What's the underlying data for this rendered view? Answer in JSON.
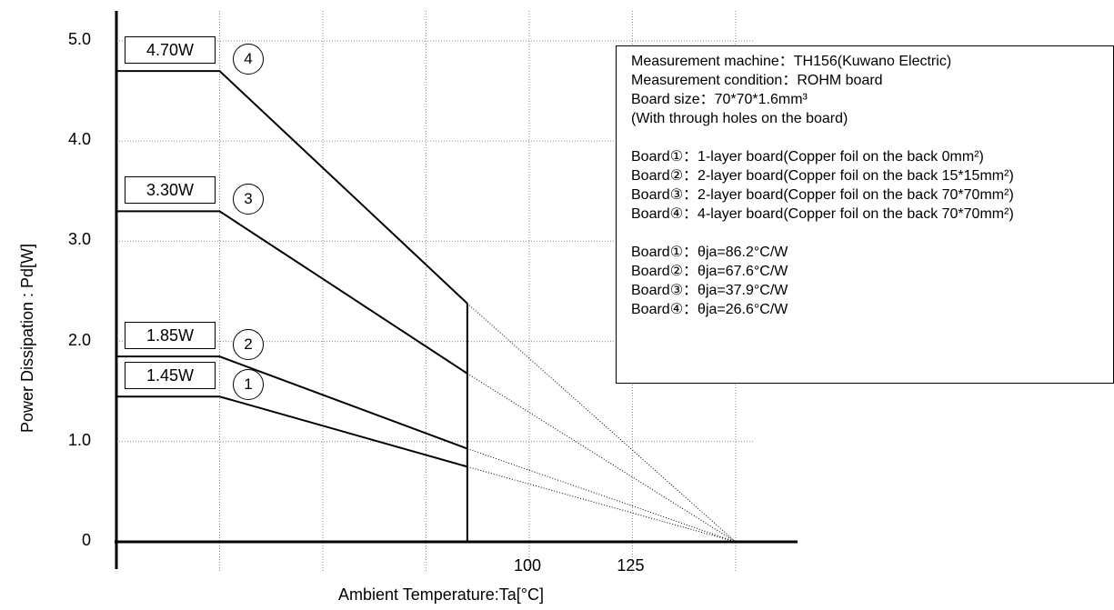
{
  "chart_data": {
    "type": "line",
    "xlabel": "Ambient Temperature:Ta[°C]",
    "ylabel": "Power Dissipation : Pd[W]",
    "y_ticks": [
      "0",
      "1.0",
      "2.0",
      "3.0",
      "4.0",
      "5.0"
    ],
    "x_ticks": [
      {
        "value": 100,
        "label": "100"
      },
      {
        "value": 125,
        "label": "125"
      }
    ],
    "xlim": [
      0,
      165
    ],
    "ylim": [
      0,
      5.3
    ],
    "grid": true,
    "cutoff_x": 85,
    "zero_x": 150,
    "series": [
      {
        "name": "1",
        "label": "1.45W",
        "points": [
          [
            0,
            1.45
          ],
          [
            25,
            1.45
          ],
          [
            85,
            0.75
          ]
        ],
        "extrapolate_to": [
          150,
          0
        ]
      },
      {
        "name": "2",
        "label": "1.85W",
        "points": [
          [
            0,
            1.85
          ],
          [
            25,
            1.85
          ],
          [
            85,
            0.93
          ]
        ],
        "extrapolate_to": [
          150,
          0
        ]
      },
      {
        "name": "3",
        "label": "3.30W",
        "points": [
          [
            0,
            3.3
          ],
          [
            25,
            3.3
          ],
          [
            85,
            1.68
          ]
        ],
        "extrapolate_to": [
          150,
          0
        ]
      },
      {
        "name": "4",
        "label": "4.70W",
        "points": [
          [
            0,
            4.7
          ],
          [
            25,
            4.7
          ],
          [
            85,
            2.38
          ]
        ],
        "extrapolate_to": [
          150,
          0
        ]
      }
    ]
  },
  "info": {
    "lines": [
      "Measurement machine：TH156(Kuwano Electric)",
      "Measurement condition：ROHM board",
      "Board size：70*70*1.6mm³",
      "(With through holes on the board)",
      "",
      "Board①：1-layer board(Copper foil on the back 0mm²)",
      "Board②：2-layer board(Copper foil on the back 15*15mm²)",
      "Board③：2-layer board(Copper foil on the back 70*70mm²)",
      "Board④：4-layer board(Copper foil on the back 70*70mm²)",
      "",
      "Board①：θja=86.2°C/W",
      "Board②：θja=67.6°C/W",
      "Board③：θja=37.9°C/W",
      "Board④：θja=26.6°C/W"
    ]
  },
  "style": {
    "line_color": "#000000",
    "grid_color": "#888888"
  }
}
